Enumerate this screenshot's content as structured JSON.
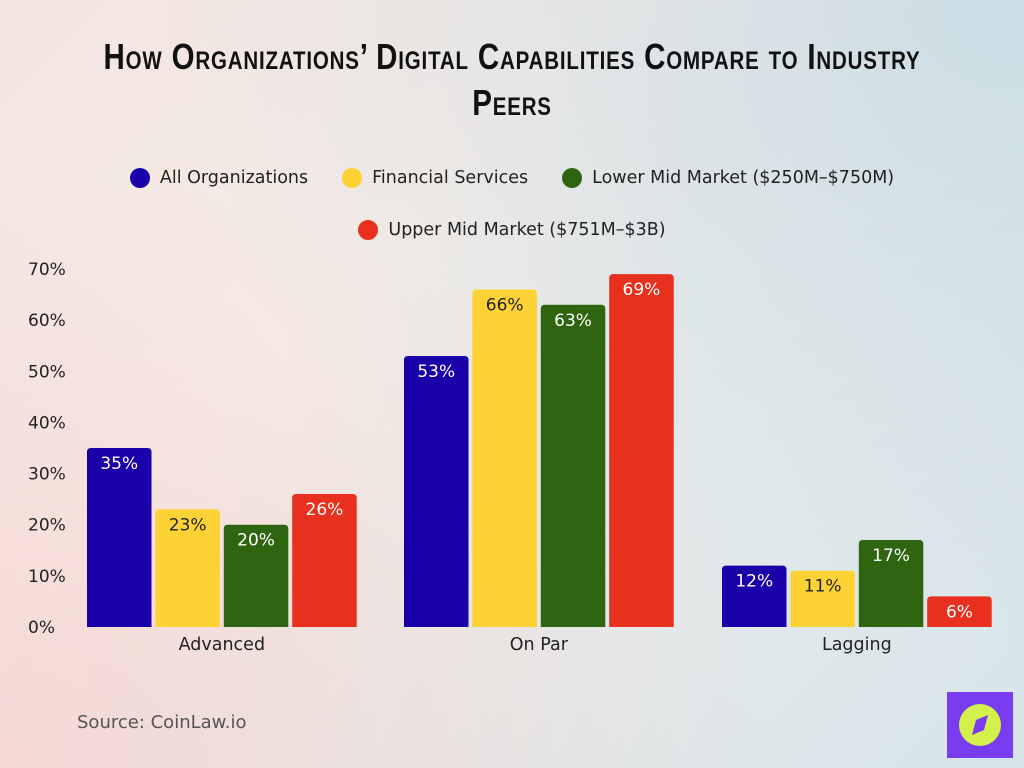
{
  "chart_data": {
    "type": "bar",
    "title": "How Organizations’ Digital Capabilities Compare to Industry Peers",
    "categories": [
      "Advanced",
      "On Par",
      "Lagging"
    ],
    "series": [
      {
        "name": "All Organizations",
        "color": "#1a00a8",
        "label_color": "#ffffff",
        "values": [
          35,
          53,
          12
        ]
      },
      {
        "name": "Financial Services",
        "color": "#fdd235",
        "label_color": "#222222",
        "values": [
          23,
          66,
          11
        ]
      },
      {
        "name": "Lower Mid Market ($250M–$750M)",
        "color": "#2f6410",
        "label_color": "#ffffff",
        "values": [
          20,
          63,
          17
        ]
      },
      {
        "name": "Upper Mid Market ($751M–$3B)",
        "color": "#e8301f",
        "label_color": "#ffffff",
        "values": [
          26,
          69,
          6
        ]
      }
    ],
    "y_ticks": [
      "0%",
      "10%",
      "20%",
      "30%",
      "40%",
      "50%",
      "60%",
      "70%"
    ],
    "ylim": [
      0,
      70
    ],
    "unit": "%",
    "grid": false,
    "legend_placement": "top"
  },
  "source": "Source: CoinLaw.io",
  "logo": {
    "icon": "compass-icon",
    "bg": "#7a3cf0",
    "fg": "#d4f04a"
  }
}
